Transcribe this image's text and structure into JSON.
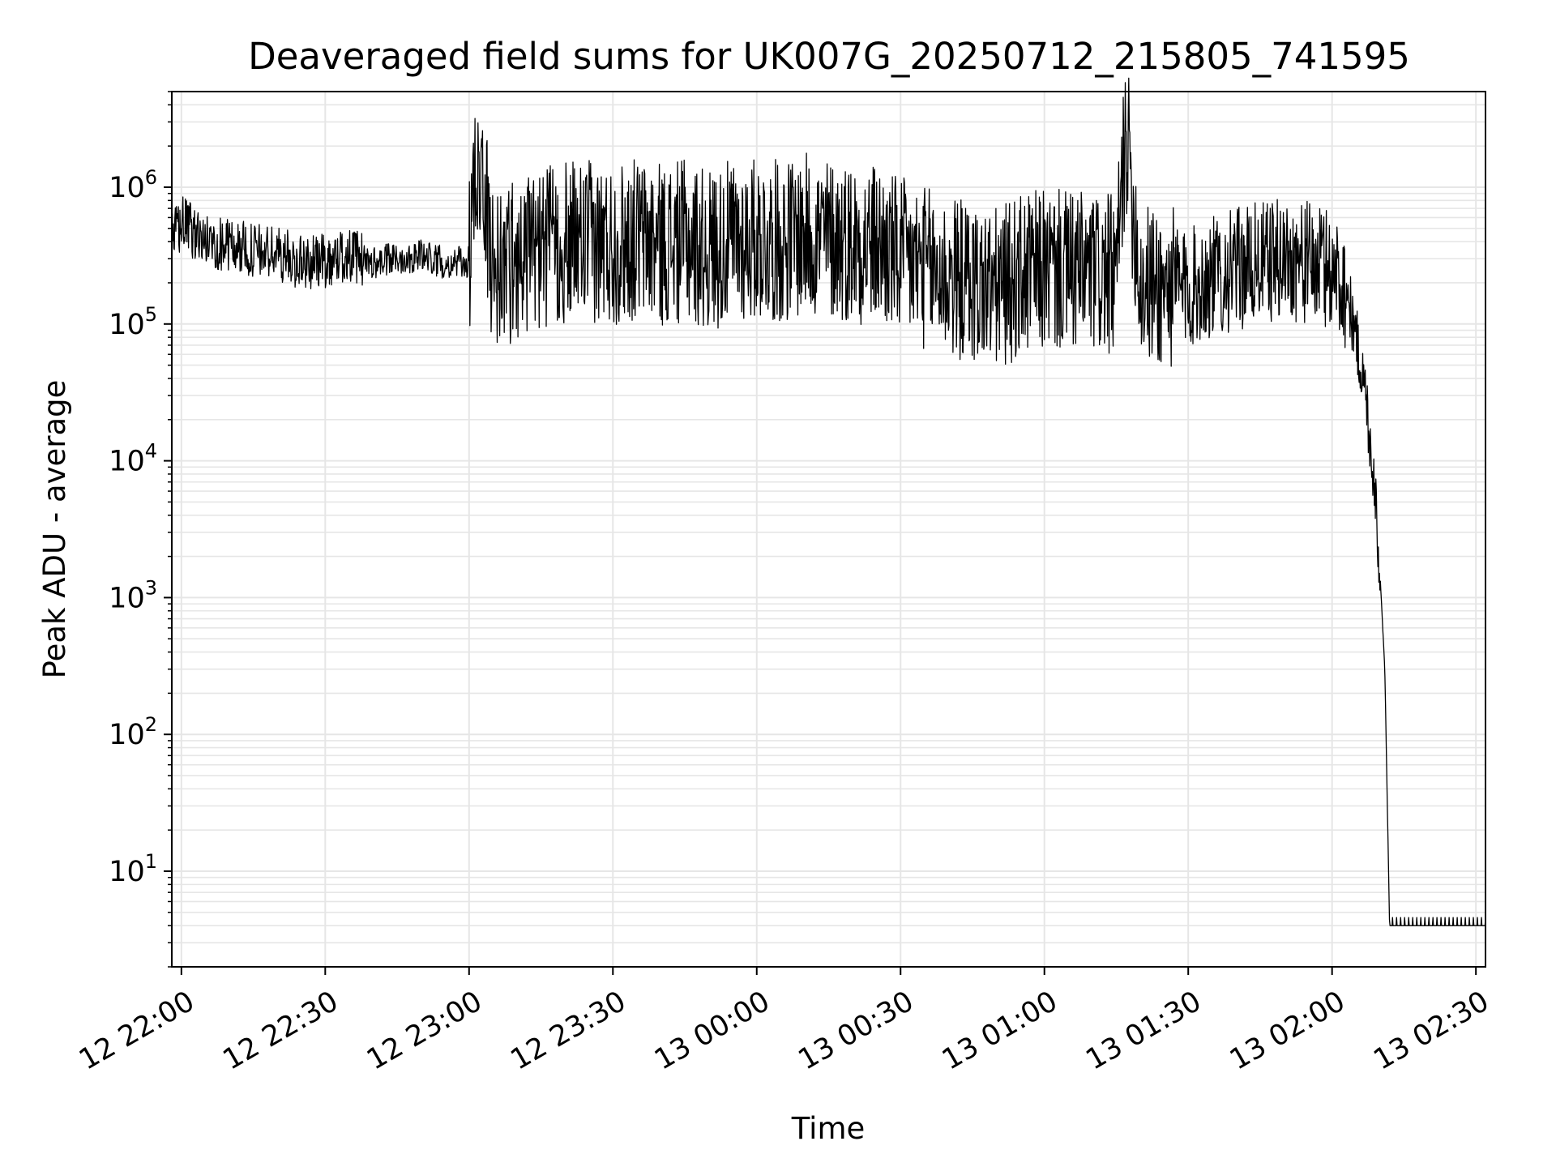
{
  "chart_data": {
    "type": "line",
    "title": "Deaveraged field sums for UK007G_20250712_215805_741595",
    "xlabel": "Time",
    "ylabel": "Peak ADU - average",
    "yscale": "log",
    "ylim": [
      2,
      5000000
    ],
    "xlim": [
      "12 21:58",
      "13 02:32"
    ],
    "grid": true,
    "line_color": "#000000",
    "grid_color": "#e6e6e6",
    "x_ticks": [
      "12 22:00",
      "12 22:30",
      "12 23:00",
      "12 23:30",
      "13 00:00",
      "13 00:30",
      "13 01:00",
      "13 01:30",
      "13 02:00",
      "13 02:30"
    ],
    "y_ticks": [
      {
        "base": "10",
        "exp": "1"
      },
      {
        "base": "10",
        "exp": "2"
      },
      {
        "base": "10",
        "exp": "3"
      },
      {
        "base": "10",
        "exp": "4"
      },
      {
        "base": "10",
        "exp": "5"
      },
      {
        "base": "10",
        "exp": "6"
      }
    ],
    "series": [
      {
        "x": [
          "12 21:58",
          "12 22:00",
          "12 22:05",
          "12 22:10",
          "12 22:15",
          "12 22:20",
          "12 22:25",
          "12 22:30",
          "12 22:35",
          "12 22:40",
          "12 22:45",
          "12 22:50",
          "12 22:55",
          "12 23:00",
          "12 23:02",
          "12 23:05",
          "12 23:10",
          "12 23:15",
          "12 23:20",
          "12 23:25",
          "12 23:30",
          "12 23:35",
          "12 23:40",
          "12 23:45",
          "12 23:50",
          "12 23:55",
          "13 00:00",
          "13 00:05",
          "13 00:10",
          "13 00:15",
          "13 00:20",
          "13 00:25",
          "13 00:30",
          "13 00:35",
          "13 00:40",
          "13 00:45",
          "13 00:50",
          "13 00:55",
          "13 01:00",
          "13 01:05",
          "13 01:10",
          "13 01:15",
          "13 01:17",
          "13 01:20",
          "13 01:25",
          "13 01:30",
          "13 01:35",
          "13 01:40",
          "13 01:45",
          "13 01:50",
          "13 01:55",
          "13 02:00",
          "13 02:03",
          "13 02:05",
          "13 02:07",
          "13 02:09",
          "13 02:10",
          "13 02:11",
          "13 02:12",
          "13 02:15",
          "13 02:20",
          "13 02:25",
          "13 02:30",
          "13 02:32"
        ],
        "y": [
          400000,
          550000,
          400000,
          380000,
          340000,
          330000,
          280000,
          290000,
          320000,
          280000,
          300000,
          320000,
          280000,
          280000,
          1900000,
          250000,
          300000,
          350000,
          380000,
          400000,
          380000,
          420000,
          380000,
          400000,
          350000,
          400000,
          420000,
          400000,
          450000,
          420000,
          400000,
          380000,
          300000,
          260000,
          220000,
          200000,
          180000,
          220000,
          250000,
          240000,
          230000,
          220000,
          2700000,
          200000,
          180000,
          180000,
          220000,
          250000,
          280000,
          300000,
          280000,
          250000,
          180000,
          80000,
          30000,
          6000,
          1500,
          300,
          4,
          4,
          4,
          4,
          4,
          4
        ]
      }
    ]
  }
}
